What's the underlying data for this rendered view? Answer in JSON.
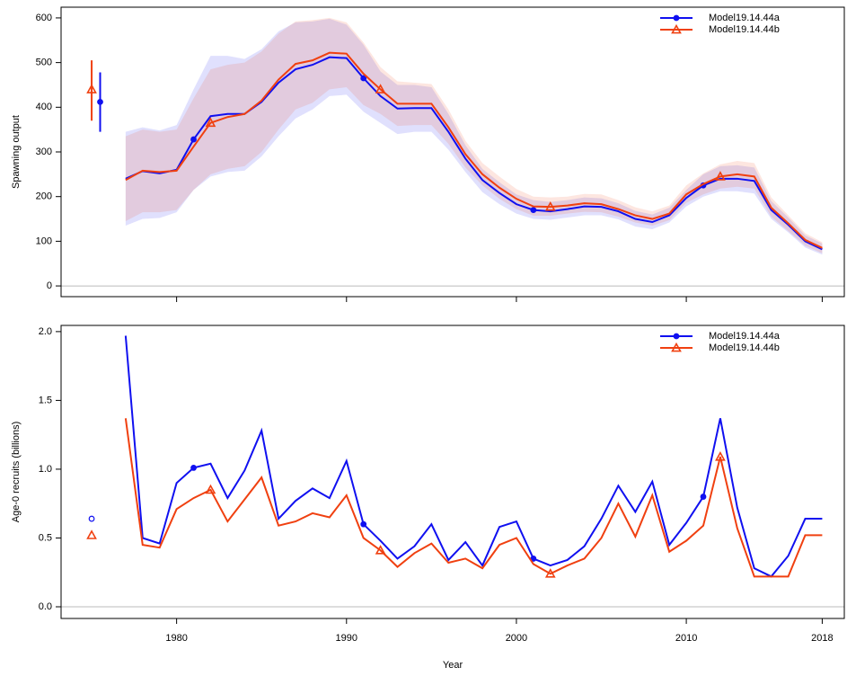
{
  "chart_data": [
    {
      "type": "line",
      "ylabel": "Spawning output",
      "x": [
        1977,
        1978,
        1979,
        1980,
        1981,
        1982,
        1983,
        1984,
        1985,
        1986,
        1987,
        1988,
        1989,
        1990,
        1991,
        1992,
        1993,
        1994,
        1995,
        1996,
        1997,
        1998,
        1999,
        2000,
        2001,
        2002,
        2003,
        2004,
        2005,
        2006,
        2007,
        2008,
        2009,
        2010,
        2011,
        2012,
        2013,
        2014,
        2015,
        2016,
        2017,
        2018
      ],
      "xlim": [
        1973.2,
        2019.3
      ],
      "xticks": [
        1980,
        1990,
        2000,
        2010,
        2018
      ],
      "show_xtick_labels": false,
      "ylim": [
        -24,
        624
      ],
      "yticks": [
        0,
        100,
        200,
        300,
        400,
        500,
        600
      ],
      "reference_line": 0,
      "legend": "top-right",
      "series": [
        {
          "name": "Model19.14.44a",
          "color": "#1010f0",
          "marker": "circle",
          "marker_years": [
            1981,
            1991,
            2001,
            2011
          ],
          "values": [
            240,
            257,
            252,
            260,
            328,
            380,
            385,
            385,
            412,
            455,
            485,
            495,
            512,
            510,
            465,
            425,
            397,
            398,
            398,
            345,
            285,
            237,
            208,
            183,
            170,
            167,
            172,
            178,
            177,
            167,
            150,
            143,
            158,
            197,
            225,
            240,
            240,
            235,
            170,
            137,
            100,
            82
          ],
          "upper": [
            345,
            355,
            348,
            360,
            440,
            515,
            515,
            508,
            530,
            570,
            590,
            592,
            598,
            585,
            540,
            480,
            450,
            450,
            445,
            385,
            315,
            262,
            232,
            205,
            192,
            188,
            192,
            198,
            196,
            185,
            168,
            160,
            175,
            215,
            250,
            268,
            270,
            265,
            190,
            153,
            113,
            95
          ],
          "lower": [
            135,
            150,
            152,
            165,
            215,
            245,
            255,
            258,
            290,
            335,
            375,
            395,
            425,
            428,
            390,
            365,
            340,
            345,
            345,
            305,
            255,
            210,
            183,
            162,
            150,
            148,
            153,
            158,
            158,
            149,
            133,
            127,
            142,
            178,
            200,
            212,
            212,
            207,
            150,
            120,
            86,
            70
          ],
          "virgin": {
            "x": 1975.5,
            "value": 412,
            "lower": 345,
            "upper": 478
          }
        },
        {
          "name": "Model19.14.44b",
          "color": "#f04010",
          "marker": "triangle",
          "marker_years": [
            1982,
            1992,
            2002,
            2012
          ],
          "values": [
            237,
            258,
            255,
            258,
            312,
            365,
            378,
            385,
            415,
            462,
            497,
            505,
            522,
            520,
            475,
            440,
            408,
            408,
            408,
            355,
            295,
            250,
            220,
            195,
            178,
            177,
            180,
            185,
            183,
            172,
            158,
            150,
            162,
            205,
            228,
            245,
            250,
            245,
            175,
            140,
            103,
            85
          ],
          "upper": [
            335,
            350,
            345,
            350,
            420,
            485,
            495,
            500,
            525,
            565,
            592,
            595,
            600,
            590,
            545,
            490,
            458,
            455,
            452,
            395,
            325,
            275,
            245,
            217,
            200,
            198,
            200,
            206,
            205,
            192,
            176,
            167,
            180,
            225,
            252,
            272,
            280,
            275,
            198,
            158,
            118,
            98
          ],
          "lower": [
            145,
            165,
            165,
            170,
            215,
            250,
            262,
            268,
            300,
            350,
            395,
            410,
            440,
            445,
            405,
            385,
            358,
            360,
            360,
            318,
            265,
            225,
            195,
            172,
            157,
            157,
            162,
            166,
            165,
            155,
            142,
            135,
            147,
            186,
            205,
            218,
            222,
            218,
            155,
            123,
            90,
            73
          ],
          "virgin": {
            "x": 1975,
            "value": 440,
            "lower": 370,
            "upper": 505
          }
        }
      ]
    },
    {
      "type": "line",
      "ylabel": "Age-0 recruits (billions)",
      "xlabel": "Year",
      "x": [
        1977,
        1978,
        1979,
        1980,
        1981,
        1982,
        1983,
        1984,
        1985,
        1986,
        1987,
        1988,
        1989,
        1990,
        1991,
        1992,
        1993,
        1994,
        1995,
        1996,
        1997,
        1998,
        1999,
        2000,
        2001,
        2002,
        2003,
        2004,
        2005,
        2006,
        2007,
        2008,
        2009,
        2010,
        2011,
        2012,
        2013,
        2014,
        2015,
        2016,
        2017,
        2018
      ],
      "xlim": [
        1973.2,
        2019.3
      ],
      "xticks": [
        1980,
        1990,
        2000,
        2010,
        2018
      ],
      "show_xtick_labels": true,
      "ylim": [
        -0.085,
        2.045
      ],
      "yticks": [
        {
          "value": 0,
          "label": "0.0"
        },
        0.5,
        {
          "value": 1,
          "label": "1.0"
        },
        1.5,
        {
          "value": 2,
          "label": "2.0"
        }
      ],
      "reference_line": 0,
      "legend": "top-right",
      "series": [
        {
          "name": "Model19.14.44a",
          "color": "#1010f0",
          "marker": "circle",
          "marker_years": [
            1981,
            1991,
            2001,
            2011
          ],
          "values": [
            1.97,
            0.5,
            0.46,
            0.9,
            1.01,
            1.04,
            0.79,
            0.99,
            1.28,
            0.64,
            0.77,
            0.86,
            0.79,
            1.06,
            0.6,
            0.48,
            0.35,
            0.44,
            0.6,
            0.34,
            0.47,
            0.3,
            0.58,
            0.62,
            0.35,
            0.3,
            0.34,
            0.44,
            0.64,
            0.88,
            0.69,
            0.91,
            0.45,
            0.61,
            0.8,
            1.37,
            0.72,
            0.28,
            0.22,
            0.37,
            0.64,
            0.64
          ],
          "virgin": {
            "x": 1975,
            "value": 0.64
          }
        },
        {
          "name": "Model19.14.44b",
          "color": "#f04010",
          "marker": "triangle",
          "marker_years": [
            1982,
            1992,
            2002,
            2012
          ],
          "values": [
            1.37,
            0.45,
            0.43,
            0.71,
            0.79,
            0.85,
            0.62,
            0.78,
            0.94,
            0.59,
            0.62,
            0.68,
            0.65,
            0.81,
            0.5,
            0.41,
            0.29,
            0.39,
            0.46,
            0.32,
            0.35,
            0.28,
            0.45,
            0.5,
            0.31,
            0.24,
            0.3,
            0.35,
            0.5,
            0.75,
            0.51,
            0.81,
            0.4,
            0.48,
            0.59,
            1.09,
            0.57,
            0.22,
            0.22,
            0.22,
            0.52,
            0.52
          ],
          "virgin": {
            "x": 1975,
            "value": 0.52
          }
        }
      ]
    }
  ]
}
